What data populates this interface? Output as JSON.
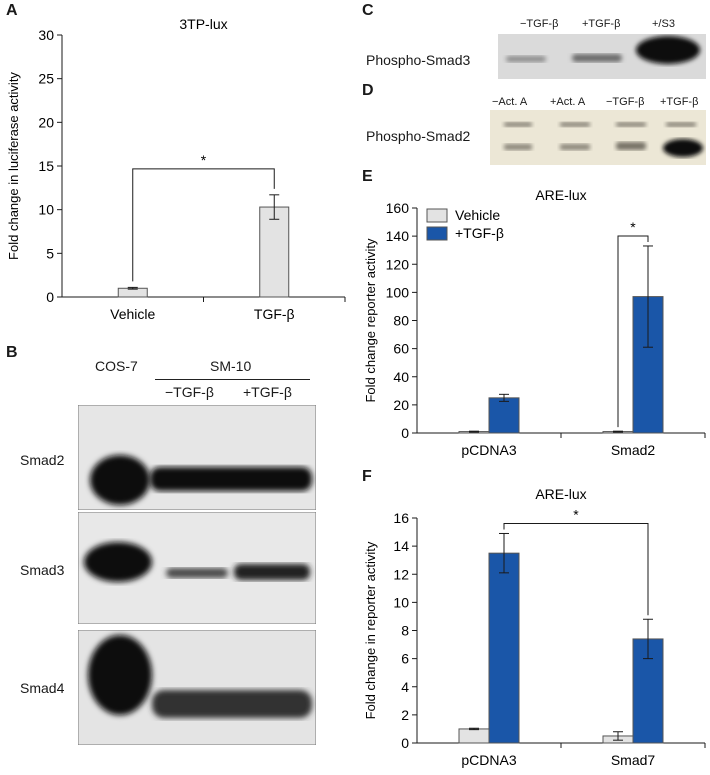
{
  "panels": {
    "A": {
      "letter": "A"
    },
    "B": {
      "letter": "B",
      "cell_line_left": "COS-7",
      "cell_line_group": "SM-10",
      "lanes": [
        "−TGF-β",
        "+TGF-β"
      ],
      "blots": [
        "Smad2",
        "Smad3",
        "Smad4"
      ]
    },
    "C": {
      "letter": "C",
      "lanes": [
        "−TGF-β",
        "+TGF-β",
        "+/S3"
      ],
      "blot": "Phospho-Smad3"
    },
    "D": {
      "letter": "D",
      "lanes": [
        "−Act. A",
        "+Act. A",
        "−TGF-β",
        "+TGF-β"
      ],
      "blot": "Phospho-Smad2"
    },
    "E": {
      "letter": "E"
    },
    "F": {
      "letter": "F"
    }
  },
  "chart_data": [
    {
      "id": "A",
      "type": "bar",
      "title": "3TP-lux",
      "ylabel": "Fold change in luciferase activity",
      "xlabel": "",
      "categories": [
        "Vehicle",
        "TGF-β"
      ],
      "values": [
        1.0,
        10.3
      ],
      "errors": [
        0.1,
        1.4
      ],
      "ylim": [
        0,
        30
      ],
      "yticks": [
        0,
        5,
        10,
        15,
        20,
        25,
        30
      ],
      "significance": [
        {
          "between": [
            0,
            1
          ],
          "label": "*"
        }
      ],
      "colors": {
        "bar": "#e3e3e3",
        "edge": "#555555"
      }
    },
    {
      "id": "E",
      "type": "bar",
      "title": "ARE-lux",
      "ylabel": "Fold change reporter activity",
      "xlabel": "",
      "categories": [
        "pCDNA3",
        "Smad2"
      ],
      "series": [
        {
          "name": "Vehicle",
          "values": [
            1,
            1
          ],
          "errors": [
            0.3,
            0.3
          ],
          "color": "#e3e3e3"
        },
        {
          "name": "+TGF-β",
          "values": [
            25,
            97
          ],
          "errors": [
            2.5,
            36
          ],
          "color": "#1a56a8"
        }
      ],
      "ylim": [
        0,
        160
      ],
      "yticks": [
        0,
        20,
        40,
        60,
        80,
        100,
        120,
        140,
        160
      ],
      "legend": "top-left",
      "significance": [
        {
          "category": 1,
          "label": "*"
        }
      ]
    },
    {
      "id": "F",
      "type": "bar",
      "title": "ARE-lux",
      "ylabel": "Fold change in reporter activity",
      "xlabel": "",
      "categories": [
        "pCDNA3",
        "Smad7"
      ],
      "series": [
        {
          "name": "Vehicle",
          "values": [
            1.0,
            0.5
          ],
          "errors": [
            0.05,
            0.3
          ],
          "color": "#e3e3e3"
        },
        {
          "name": "+TGF-β",
          "values": [
            13.5,
            7.4
          ],
          "errors": [
            1.4,
            1.4
          ],
          "color": "#1a56a8"
        }
      ],
      "ylim": [
        0,
        16
      ],
      "yticks": [
        0,
        2,
        4,
        6,
        8,
        10,
        12,
        14,
        16
      ],
      "significance": [
        {
          "between": [
            [
              0,
              1
            ],
            [
              1,
              1
            ]
          ],
          "label": "*"
        }
      ]
    }
  ]
}
